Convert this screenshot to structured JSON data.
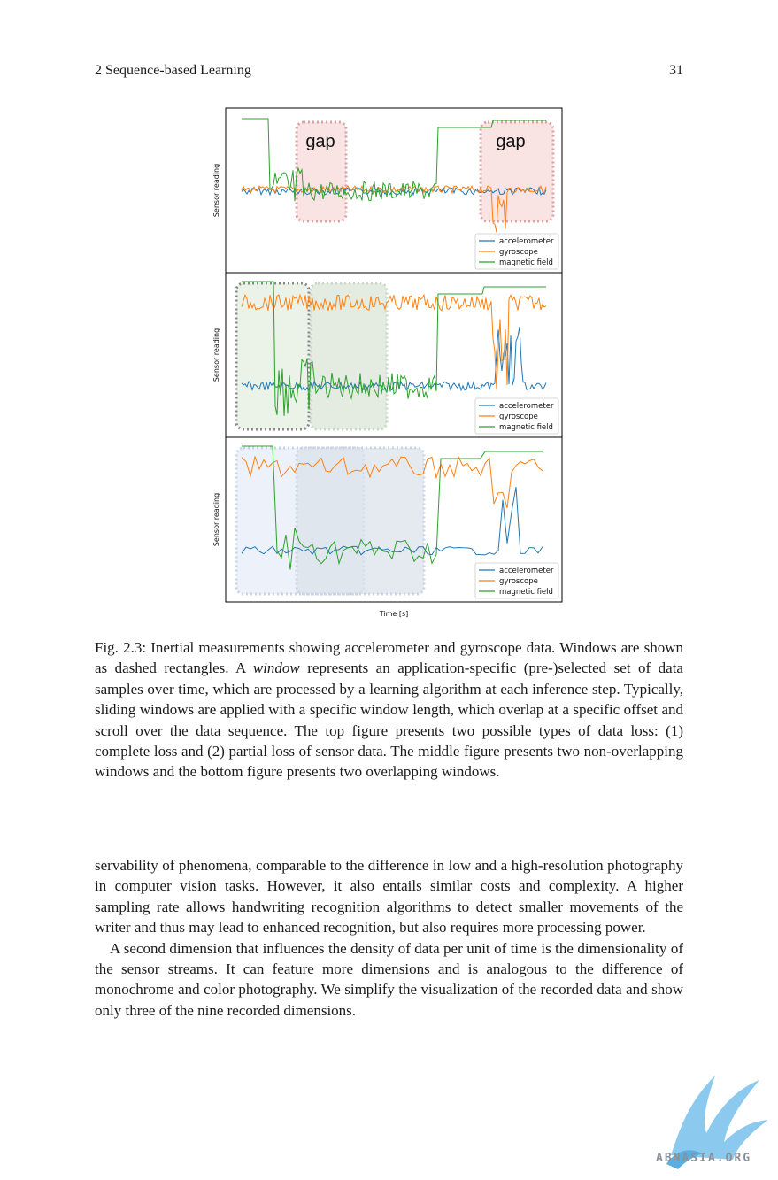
{
  "header": {
    "section": "2  Sequence-based Learning",
    "page_number": "31"
  },
  "chart_data": {
    "type": "line",
    "xlabel": "Time [s]",
    "panels": [
      {
        "ylabel": "Sensor reading",
        "legend": [
          "accelerometer",
          "gyroscope",
          "magnetic field"
        ],
        "legend_position": "bottom-right",
        "annotations": [
          "gap",
          "gap"
        ],
        "windows": "red dotted regions marking data loss"
      },
      {
        "ylabel": "Sensor reading",
        "legend": [
          "accelerometer",
          "gyroscope",
          "magnetic field"
        ],
        "legend_position": "bottom-right",
        "windows": "two non-overlapping windows"
      },
      {
        "ylabel": "Sensor reading",
        "legend": [
          "accelerometer",
          "gyroscope",
          "magnetic field"
        ],
        "legend_position": "bottom-right",
        "windows": "two overlapping windows"
      }
    ],
    "series_colors": {
      "accelerometer": "#1f77b4",
      "gyroscope": "#ff7f0e",
      "magnetic field": "#2ca02c"
    }
  },
  "caption": {
    "label": "Fig. 2.3:",
    "part1": " Inertial measurements showing accelerometer and gyroscope data. Windows are shown as dashed rectangles. A ",
    "emph": "window",
    "part2": " represents an application-specific (pre-)selected set of data samples over time, which are processed by a learning algorithm at each inference step. Typically, sliding windows are applied with a specific window length, which overlap at a specific offset and scroll over the data sequence. The top figure presents two possible types of data loss: (1) complete loss and (2) partial loss of sensor data. The middle figure presents two non-overlapping windows and the bottom figure presents two overlapping windows."
  },
  "body": {
    "p1": "servability of phenomena, comparable to the difference in low and a high-resolution photography in computer vision tasks. However, it also entails similar costs and complexity. A higher sampling rate allows handwriting recognition algorithms to detect smaller movements of the writer and thus may lead to enhanced recognition, but also requires more processing power.",
    "p2": "A second dimension that influences the density of data per unit of time is the dimensionality of the sensor streams. It can feature more dimensions and is analogous to the difference of monochrome and color photography. We simplify the visualization of the recorded data and show only three of the nine recorded dimensions."
  },
  "watermark": {
    "text": "ABNASIA.ORG"
  }
}
